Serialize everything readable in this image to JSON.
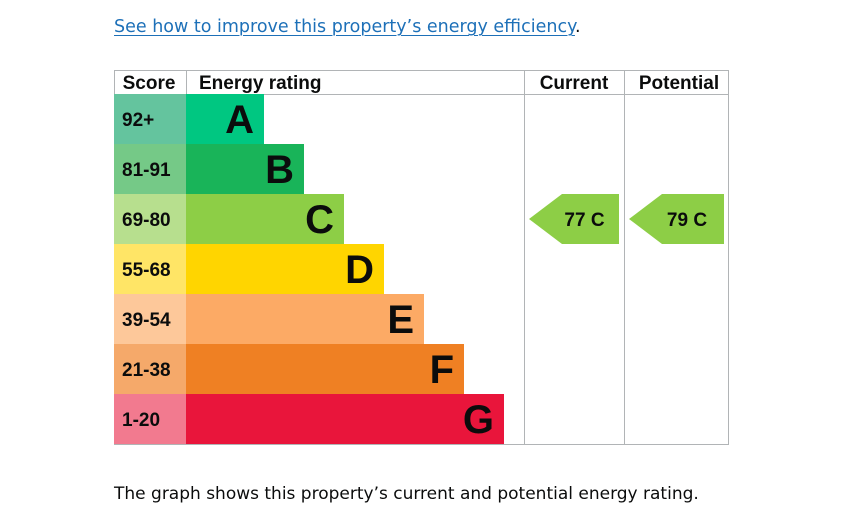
{
  "intro": {
    "link_text": "See how to improve this property’s energy efficiency",
    "trailing": "."
  },
  "chart_data": {
    "type": "bar",
    "headers": {
      "score": "Score",
      "rating": "Energy rating",
      "current": "Current",
      "potential": "Potential"
    },
    "bands": [
      {
        "score": "92+",
        "letter": "A",
        "color": "#00c781",
        "score_bg": "#64c49e"
      },
      {
        "score": "81-91",
        "letter": "B",
        "color": "#19b459",
        "score_bg": "#75c987"
      },
      {
        "score": "69-80",
        "letter": "C",
        "color": "#8dce46",
        "score_bg": "#b7df8e"
      },
      {
        "score": "55-68",
        "letter": "D",
        "color": "#ffd500",
        "score_bg": "#ffe566"
      },
      {
        "score": "39-54",
        "letter": "E",
        "color": "#fcaa65",
        "score_bg": "#fdc89a"
      },
      {
        "score": "21-38",
        "letter": "F",
        "color": "#ef8023",
        "score_bg": "#f5a96a"
      },
      {
        "score": "1-20",
        "letter": "G",
        "color": "#e9153b",
        "score_bg": "#f27a8f"
      }
    ],
    "current": {
      "value": 77,
      "letter": "C",
      "label": "77 C",
      "color": "#8dce46"
    },
    "potential": {
      "value": 79,
      "letter": "C",
      "label": "79 C",
      "color": "#8dce46"
    }
  },
  "caption": "The graph shows this property’s current and potential energy rating."
}
